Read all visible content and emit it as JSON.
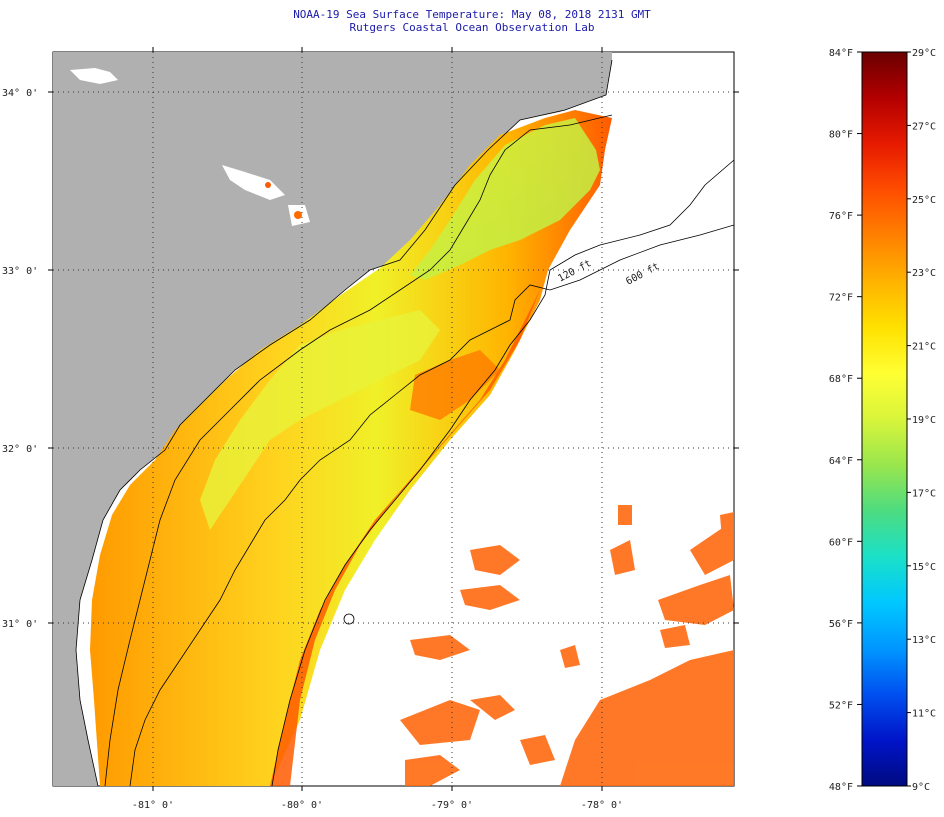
{
  "header": {
    "title_line1": "NOAA-19 Sea Surface Temperature:  May 08, 2018 2131 GMT",
    "title_line2": "Rutgers Coastal Ocean Observation Lab"
  },
  "map": {
    "lat_labels": [
      "34° 0'",
      "33° 0'",
      "32° 0'",
      "31° 0'"
    ],
    "lon_labels": [
      "-81° 0'",
      "-80° 0'",
      "-79° 0'",
      "-78° 0'"
    ],
    "contour_labels": [
      "120 ft",
      "600 ft"
    ]
  },
  "colorbar": {
    "fahrenheit": [
      "84°F",
      "80°F",
      "76°F",
      "72°F",
      "68°F",
      "64°F",
      "60°F",
      "56°F",
      "52°F",
      "48°F"
    ],
    "celsius": [
      "29°C",
      "27°C",
      "25°C",
      "23°C",
      "21°C",
      "19°C",
      "17°C",
      "15°C",
      "13°C",
      "11°C",
      "9°C"
    ],
    "colors": [
      "#6b0000",
      "#b30000",
      "#e61a00",
      "#ff4d00",
      "#ff8000",
      "#ffb300",
      "#ffe100",
      "#ffff33",
      "#d9f53b",
      "#99e64d",
      "#4ddc80",
      "#1ae0c8",
      "#00c8ff",
      "#0096ff",
      "#0050f0",
      "#0014c8",
      "#000a80"
    ]
  }
}
